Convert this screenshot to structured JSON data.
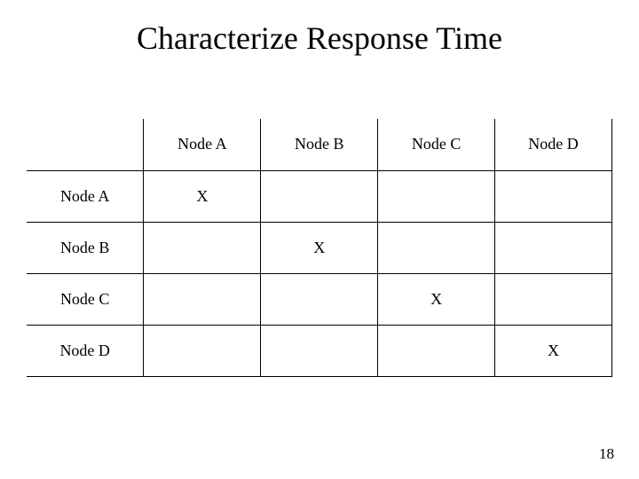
{
  "slide": {
    "title": "Characterize Response Time",
    "page_number": "18",
    "background_color": "#ffffff",
    "text_color": "#000000",
    "border_color": "#000000",
    "title_fontsize": 36,
    "cell_fontsize": 18
  },
  "table": {
    "columns": [
      "Node A",
      "Node B",
      "Node C",
      "Node D"
    ],
    "rows": [
      "Node A",
      "Node B",
      "Node C",
      "Node D"
    ],
    "cells": [
      [
        "X",
        "",
        "",
        ""
      ],
      [
        "",
        "X",
        "",
        ""
      ],
      [
        "",
        "",
        "X",
        ""
      ],
      [
        "",
        "",
        "",
        "X"
      ]
    ]
  }
}
